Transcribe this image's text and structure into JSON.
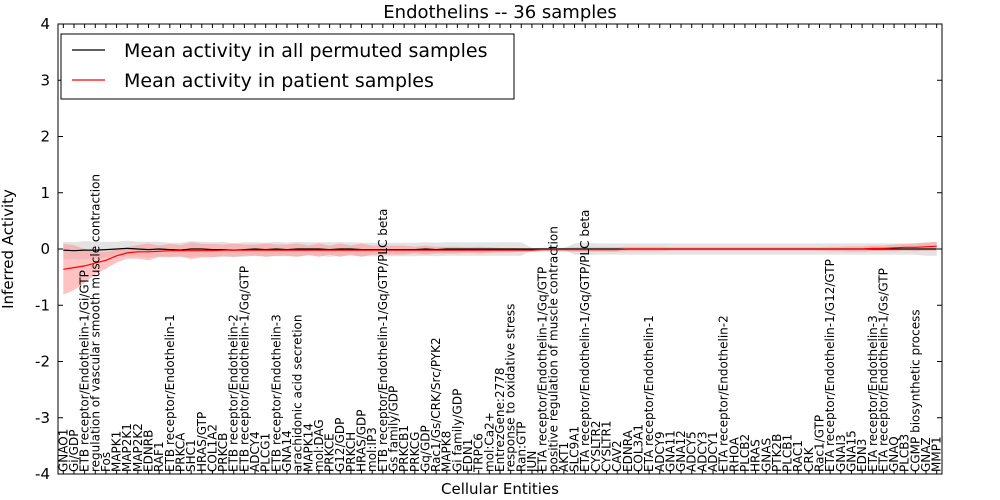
{
  "chart_data": {
    "type": "line",
    "title": "Endothelins -- 36 samples",
    "xlabel": "Cellular Entities",
    "ylabel": "Inferred Activity",
    "ylim": [
      -4,
      4
    ],
    "yticks": [
      -4,
      -3,
      -2,
      -1,
      0,
      1,
      2,
      3,
      4
    ],
    "grid": false,
    "legend_position": "top-left",
    "categories": [
      "GNAO1",
      "Gi/GDP",
      "ETB receptor/Endothelin-1/Gi/GTP",
      "regulation of vascular smooth muscle contraction",
      "Fos",
      "MAPK1",
      "MAP2K1",
      "MAP2K2",
      "EDNRB",
      "RAF1",
      "ETB receptor/Endothelin-1",
      "PRKCA",
      "SHC1",
      "HRAS/GTP",
      "COL1A2",
      "PRKCB",
      "ETB receptor/Endothelin-2",
      "ETB receptor/Endothelin-1/Gq/GTP",
      "ADCY4",
      "PLCG1",
      "ETB receptor/Endothelin-3",
      "GNA14",
      "arachidonic acid secretion",
      "MAPK14",
      "mol:DAG",
      "PRKCE",
      "G12/GDP",
      "PRKCH",
      "HRAS/GDP",
      "mol:IP3",
      "ETB receptor/Endothelin-1/Gq/GTP/PLC beta",
      "Gs family/GDP",
      "PRKCB1",
      "PRKCG",
      "Gq/GDP",
      "Rac1/Gs/CRK/Src/PYK2",
      "MAPK8",
      "Gi family/GDP",
      "EDN1",
      "TRPC6",
      "mol:Ca2+",
      "EntrezGene:2778",
      "response to oxidative stress",
      "Ran:GTP",
      "JUN",
      "ETA receptor/Endothelin-1/Gq/GTP",
      "positive regulation of muscle contraction",
      "AKT1",
      "SLC9A1",
      "ETA receptor/Endothelin-1/Gq/GTP/PLC beta",
      "CYSLTR2",
      "CYSLTR1",
      "CAV2",
      "EDNRA",
      "COL3A1",
      "ETA receptor/Endothelin-1",
      "ADCY9",
      "GNA11",
      "GNA12",
      "ADCY5",
      "ADCY3",
      "ADCY1",
      "ETA receptor/Endothelin-2",
      "RHOA",
      "PLCB2",
      "HRAS",
      "GNAS",
      "PTK2B",
      "PLCB1",
      "RAC1",
      "CRK",
      "Rac1/GTP",
      "ETA receptor/Endothelin-1/G12/GTP",
      "GNAI3",
      "GNA15",
      "EDN3",
      "ETA receptor/Endothelin-3",
      "ETA receptor/Endothelin-1/Gs/GTP",
      "GNAQ",
      "PLCB3",
      "CGMP biosynthetic process",
      "GNAZ",
      "MMP1"
    ],
    "series": [
      {
        "name": "Mean activity in all permuted samples",
        "color": "#000000",
        "band_color": "#c0c0c0",
        "values": [
          -0.02,
          -0.03,
          -0.02,
          -0.02,
          -0.01,
          0.0,
          0.01,
          0.0,
          -0.01,
          0.0,
          -0.01,
          -0.02,
          0.0,
          0.0,
          -0.01,
          -0.01,
          -0.02,
          -0.01,
          0.0,
          -0.01,
          0.0,
          -0.01,
          0.0,
          0.0,
          0.0,
          -0.01,
          0.0,
          0.0,
          -0.01,
          -0.01,
          -0.01,
          -0.01,
          -0.01,
          -0.01,
          0.0,
          -0.01,
          0.0,
          0.0,
          0.0,
          0.0,
          0.0,
          0.0,
          0.0,
          0.0,
          0.0,
          0.0,
          0.0,
          0.0,
          0.0,
          0.0,
          0.0,
          0.0,
          0.0,
          0.0,
          0.0,
          0.0,
          0.0,
          0.0,
          0.0,
          0.0,
          0.0,
          0.0,
          0.0,
          0.0,
          0.0,
          0.0,
          0.0,
          0.0,
          0.0,
          0.0,
          0.0,
          0.0,
          0.0,
          0.0,
          0.0,
          0.0,
          0.0,
          0.0,
          0.0,
          0.0,
          0.0,
          0.0,
          0.0
        ],
        "band_halfwidth": [
          0.15,
          0.15,
          0.16,
          0.15,
          0.14,
          0.13,
          0.14,
          0.13,
          0.14,
          0.13,
          0.12,
          0.13,
          0.14,
          0.13,
          0.13,
          0.14,
          0.12,
          0.13,
          0.12,
          0.12,
          0.13,
          0.12,
          0.13,
          0.12,
          0.12,
          0.13,
          0.12,
          0.12,
          0.12,
          0.12,
          0.12,
          0.12,
          0.12,
          0.12,
          0.12,
          0.12,
          0.12,
          0.12,
          0.12,
          0.12,
          0.12,
          0.12,
          0.12,
          0.12,
          0.02,
          0.02,
          0.02,
          0.02,
          0.1,
          0.11,
          0.1,
          0.1,
          0.1,
          0.1,
          0.1,
          0.1,
          0.1,
          0.1,
          0.1,
          0.1,
          0.1,
          0.1,
          0.1,
          0.1,
          0.1,
          0.1,
          0.1,
          0.1,
          0.1,
          0.1,
          0.1,
          0.1,
          0.1,
          0.1,
          0.1,
          0.1,
          0.1,
          0.1,
          0.1,
          0.1,
          0.1,
          0.12,
          0.12
        ]
      },
      {
        "name": "Mean activity in patient samples",
        "color": "#ff0000",
        "band_color": "#ff9999",
        "values": [
          -0.36,
          -0.33,
          -0.3,
          -0.25,
          -0.2,
          -0.12,
          -0.07,
          -0.05,
          -0.05,
          -0.04,
          -0.03,
          -0.03,
          -0.03,
          -0.03,
          -0.03,
          -0.02,
          -0.02,
          -0.02,
          -0.02,
          -0.02,
          -0.02,
          -0.02,
          -0.02,
          -0.02,
          -0.02,
          -0.02,
          -0.02,
          -0.02,
          -0.02,
          -0.02,
          -0.02,
          -0.02,
          -0.02,
          -0.02,
          -0.02,
          -0.02,
          -0.02,
          -0.02,
          -0.02,
          -0.02,
          -0.02,
          -0.02,
          -0.02,
          -0.02,
          -0.02,
          -0.01,
          -0.01,
          -0.01,
          -0.01,
          -0.01,
          -0.01,
          -0.01,
          -0.01,
          0.0,
          0.0,
          0.0,
          0.0,
          0.0,
          0.0,
          0.0,
          0.0,
          0.0,
          0.0,
          0.0,
          0.0,
          0.0,
          0.0,
          0.0,
          0.0,
          0.0,
          0.0,
          0.0,
          0.0,
          0.0,
          0.0,
          0.0,
          0.01,
          0.01,
          0.02,
          0.03,
          0.03,
          0.04,
          0.05
        ],
        "band_halfwidth": [
          0.45,
          0.4,
          0.3,
          0.2,
          0.15,
          0.12,
          0.1,
          0.12,
          0.15,
          0.1,
          0.12,
          0.1,
          0.15,
          0.12,
          0.12,
          0.1,
          0.12,
          0.1,
          0.1,
          0.12,
          0.1,
          0.1,
          0.12,
          0.08,
          0.12,
          0.08,
          0.12,
          0.08,
          0.12,
          0.08,
          0.08,
          0.08,
          0.08,
          0.06,
          0.08,
          0.06,
          0.06,
          0.06,
          0.05,
          0.06,
          0.05,
          0.04,
          0.04,
          0.03,
          0.03,
          0.03,
          0.03,
          0.03,
          0.04,
          0.04,
          0.04,
          0.04,
          0.04,
          0.04,
          0.04,
          0.04,
          0.04,
          0.03,
          0.03,
          0.03,
          0.03,
          0.03,
          0.03,
          0.03,
          0.03,
          0.03,
          0.03,
          0.03,
          0.03,
          0.03,
          0.03,
          0.03,
          0.04,
          0.04,
          0.05,
          0.05,
          0.05,
          0.05,
          0.06,
          0.06,
          0.07,
          0.07,
          0.08
        ]
      }
    ]
  }
}
